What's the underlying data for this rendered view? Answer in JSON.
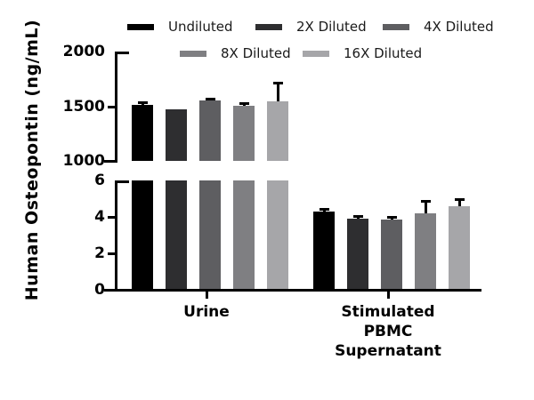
{
  "figure": {
    "background": "#ffffff"
  },
  "chart_data": {
    "type": "bar",
    "title": "",
    "ylabel": "Human Osteopontin (ng/mL)",
    "xlabel": "",
    "legend_position": "top",
    "grid": false,
    "axis_break": true,
    "error_bars": "upper",
    "categories": [
      "Urine",
      "Stimulated PBMC Supernatant"
    ],
    "category_display": [
      "Urine",
      "Stimulated\nPBMC\nSupernatant"
    ],
    "top_axis": {
      "range": [
        1000,
        2000
      ],
      "ticks": [
        1000,
        1500,
        2000
      ],
      "unit": "ng/mL"
    },
    "bottom_axis": {
      "range": [
        0,
        6
      ],
      "ticks": [
        0,
        2,
        4,
        6
      ],
      "unit": "ng/mL"
    },
    "series": [
      {
        "name": "Undiluted",
        "color": "#000000",
        "values": [
          1510,
          4.3
        ],
        "errors_plus": [
          15,
          0.1
        ]
      },
      {
        "name": "2X Diluted",
        "color": "#2e2e30",
        "values": [
          1475,
          3.9
        ],
        "errors_plus": [
          0,
          0.1
        ]
      },
      {
        "name": "4X Diluted",
        "color": "#5e5e61",
        "values": [
          1550,
          3.85
        ],
        "errors_plus": [
          15,
          0.1
        ]
      },
      {
        "name": "8X Diluted",
        "color": "#7f7f82",
        "values": [
          1505,
          4.2
        ],
        "errors_plus": [
          12,
          0.65
        ]
      },
      {
        "name": "16X Diluted",
        "color": "#a6a6a9",
        "values": [
          1545,
          4.6
        ],
        "errors_plus": [
          160,
          0.35
        ]
      }
    ]
  }
}
